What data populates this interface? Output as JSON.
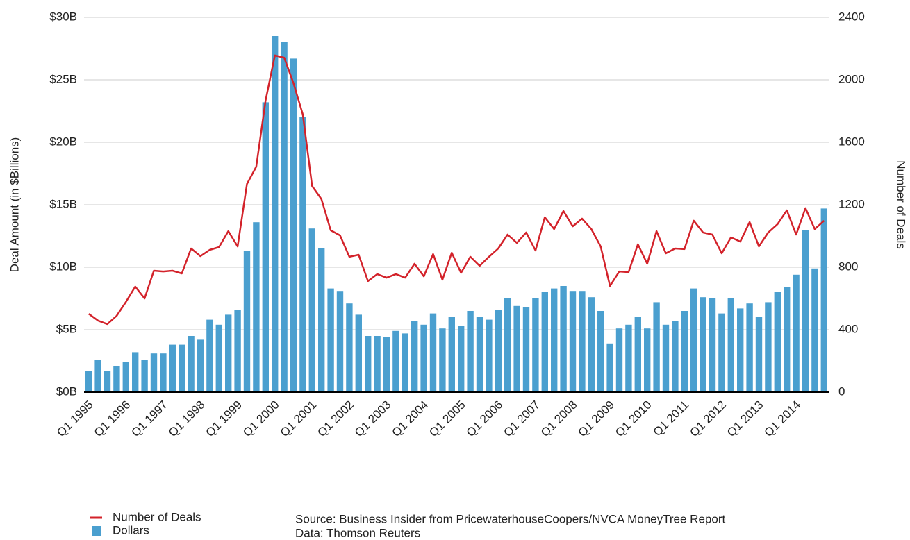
{
  "chart_data": {
    "type": "combo",
    "ylabel": "Deal Amount (in $Billions)",
    "y2label": "Number of Deals",
    "categories": [
      "Q1 1995",
      null,
      null,
      null,
      "Q1 1996",
      null,
      null,
      null,
      "Q1 1997",
      null,
      null,
      null,
      "Q1 1998",
      null,
      null,
      null,
      "Q1 1999",
      null,
      null,
      null,
      "Q1 2000",
      null,
      null,
      null,
      "Q1 2001",
      null,
      null,
      null,
      "Q1 2002",
      null,
      null,
      null,
      "Q1 2003",
      null,
      null,
      null,
      "Q1 2004",
      null,
      null,
      null,
      "Q1 2005",
      null,
      null,
      null,
      "Q1 2006",
      null,
      null,
      null,
      "Q1 2007",
      null,
      null,
      null,
      "Q1 2008",
      null,
      null,
      null,
      "Q1 2009",
      null,
      null,
      null,
      "Q1 2010",
      null,
      null,
      null,
      "Q1 2011",
      null,
      null,
      null,
      "Q1 2012",
      null,
      null,
      null,
      "Q1 2013",
      null,
      null,
      null,
      "Q1 2014",
      null,
      null,
      null
    ],
    "series": [
      {
        "name": "Dollars",
        "type": "bar",
        "color": "#4a9fcf",
        "axis": "y",
        "values": [
          1.7,
          2.6,
          1.7,
          2.1,
          2.4,
          3.2,
          2.6,
          3.1,
          3.1,
          3.8,
          3.8,
          4.5,
          4.2,
          5.8,
          5.4,
          6.2,
          6.6,
          11.3,
          13.6,
          23.2,
          28.5,
          28.0,
          26.7,
          22.0,
          13.1,
          11.5,
          8.3,
          8.1,
          7.1,
          6.2,
          4.5,
          4.5,
          4.4,
          4.9,
          4.7,
          5.7,
          5.4,
          6.3,
          5.1,
          6.0,
          5.3,
          6.5,
          6.0,
          5.8,
          6.6,
          7.5,
          6.9,
          6.8,
          7.5,
          8.0,
          8.3,
          8.5,
          8.1,
          8.1,
          7.6,
          6.5,
          3.9,
          5.1,
          5.4,
          6.0,
          5.1,
          7.2,
          5.4,
          5.7,
          6.5,
          8.3,
          7.6,
          7.5,
          6.3,
          7.5,
          6.7,
          7.1,
          6.0,
          7.2,
          8.0,
          8.4,
          9.4,
          13.0,
          9.9,
          14.7
        ]
      },
      {
        "name": "Number of Deals",
        "type": "line",
        "color": "#d3222a",
        "axis": "y2",
        "values": [
          502,
          458,
          436,
          489,
          578,
          676,
          600,
          778,
          773,
          778,
          760,
          920,
          871,
          911,
          929,
          1031,
          933,
          1333,
          1444,
          1867,
          2156,
          2142,
          1978,
          1778,
          1320,
          1236,
          1036,
          1004,
          867,
          880,
          711,
          756,
          733,
          756,
          733,
          822,
          742,
          884,
          720,
          893,
          764,
          867,
          809,
          867,
          920,
          1009,
          956,
          1022,
          907,
          1120,
          1044,
          1160,
          1062,
          1111,
          1044,
          933,
          680,
          773,
          769,
          947,
          822,
          1031,
          889,
          920,
          916,
          1098,
          1022,
          1009,
          889,
          991,
          964,
          1089,
          933,
          1022,
          1076,
          1164,
          1009,
          1178,
          1044,
          1098
        ]
      }
    ],
    "ylim": [
      0,
      30
    ],
    "yticks": [
      {
        "value": 0,
        "label": "$0B"
      },
      {
        "value": 5,
        "label": "$5B"
      },
      {
        "value": 10,
        "label": "$10B"
      },
      {
        "value": 15,
        "label": "$15B"
      },
      {
        "value": 20,
        "label": "$20B"
      },
      {
        "value": 25,
        "label": "$25B"
      },
      {
        "value": 30,
        "label": "$30B"
      }
    ],
    "y2lim": [
      0,
      2400
    ],
    "y2ticks": [
      0,
      400,
      800,
      1200,
      1600,
      2000,
      2400
    ],
    "grid": true,
    "legend": "bottom-left",
    "annotations": [
      "Source: Business Insider from PricewaterhouseCoopers/NVCA MoneyTree Report",
      "Data: Thomson Reuters"
    ]
  }
}
